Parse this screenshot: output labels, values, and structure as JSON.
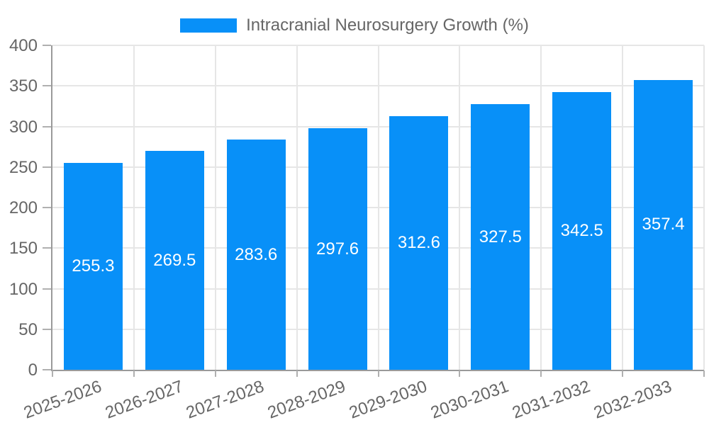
{
  "legend": {
    "label": "Intracranial Neurosurgery Growth (%)"
  },
  "chart_data": {
    "type": "bar",
    "title": "Intracranial Neurosurgery Growth (%)",
    "categories": [
      "2025-2026",
      "2026-2027",
      "2027-2028",
      "2028-2029",
      "2029-2030",
      "2030-2031",
      "2031-2032",
      "2032-2033"
    ],
    "values": [
      255.3,
      269.5,
      283.6,
      297.6,
      312.6,
      327.5,
      342.5,
      357.4
    ],
    "bar_labels": [
      "255.3",
      "269.5",
      "283.6",
      "297.6",
      "312.6",
      "327.5",
      "342.5",
      "357.4"
    ],
    "xlabel": "",
    "ylabel": "",
    "ylim": [
      0,
      400
    ],
    "yticks": [
      0,
      50,
      100,
      150,
      200,
      250,
      300,
      350,
      400
    ],
    "grid": true,
    "legend_position": "top-center",
    "x_tick_rotation_deg": -20,
    "colors": {
      "bar": "#0890f8",
      "bar_label": "#ffffff",
      "legend_text": "#666666",
      "tick_text": "#666666",
      "gridline": "#e6e6e6",
      "axis_border": "#9a9a9a",
      "tick_mark": "#b0b0b0",
      "background": "#ffffff"
    }
  }
}
